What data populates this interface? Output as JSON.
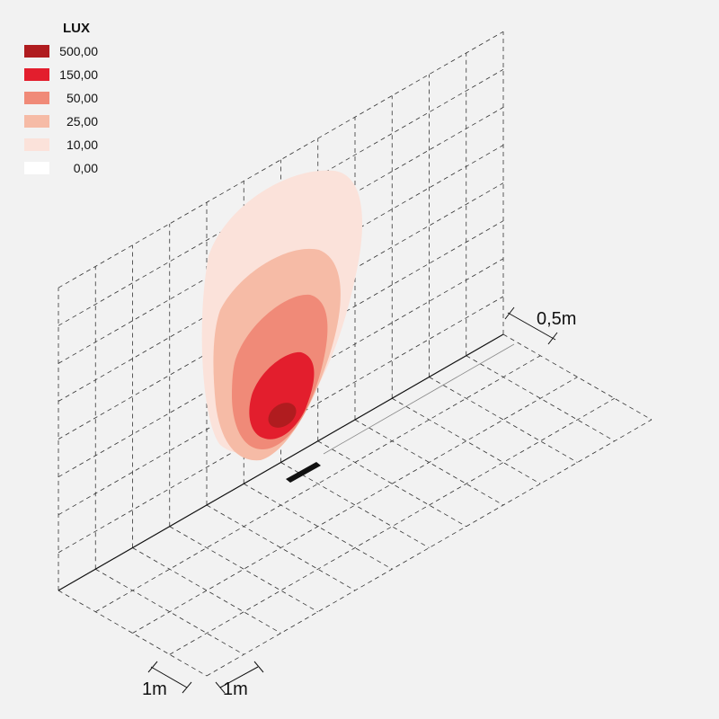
{
  "legend": {
    "title": "LUX",
    "items": [
      {
        "label": "500,00",
        "color": "#b01c1f"
      },
      {
        "label": "150,00",
        "color": "#e31e2d"
      },
      {
        "label": "50,00",
        "color": "#f08a78"
      },
      {
        "label": "25,00",
        "color": "#f6bba6"
      },
      {
        "label": "10,00",
        "color": "#fbe2da"
      },
      {
        "label": "0,00",
        "color": "#ffffff"
      }
    ]
  },
  "dimensions": {
    "depth": "0,5m",
    "width_a": "1m",
    "width_b": "1m"
  }
}
